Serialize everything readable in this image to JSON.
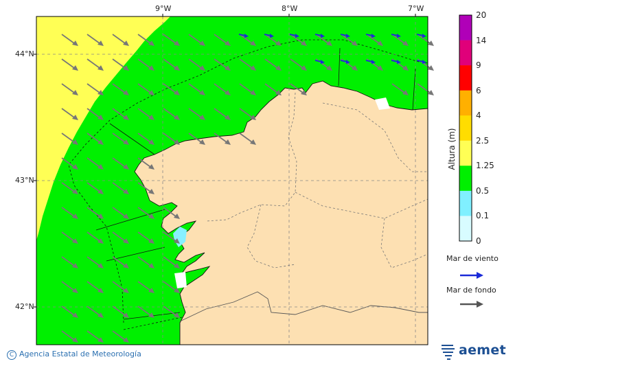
{
  "map": {
    "lon_labels": [
      "9°W",
      "8°W",
      "7°W"
    ],
    "lat_labels": [
      "44°N",
      "43°N",
      "42°N"
    ],
    "colors": {
      "land": "#fde0b2",
      "sea_green": "#00f000",
      "sea_yellow": "#ffff55",
      "sea_cyan": "#88f0ff",
      "wind_sea_arrow": "#1a2ad8",
      "swell_arrow": "#777777"
    }
  },
  "colorbar": {
    "title": "Altura (m)",
    "ticks": [
      "20",
      "14",
      "9",
      "6",
      "4",
      "2.5",
      "1.25",
      "0.5",
      "0.1",
      "0"
    ],
    "colors": [
      "#b000b8",
      "#e0007a",
      "#ff0000",
      "#ffb000",
      "#ffdd00",
      "#ffff55",
      "#00f000",
      "#80f0ff",
      "#d8fcff"
    ]
  },
  "legend": {
    "wind_sea_label": "Mar de viento",
    "swell_label": "Mar de fondo"
  },
  "footer": {
    "copyright_symbol": "C",
    "agency": "Agencia Estatal de Meteorología",
    "logo_text": "aemet"
  }
}
